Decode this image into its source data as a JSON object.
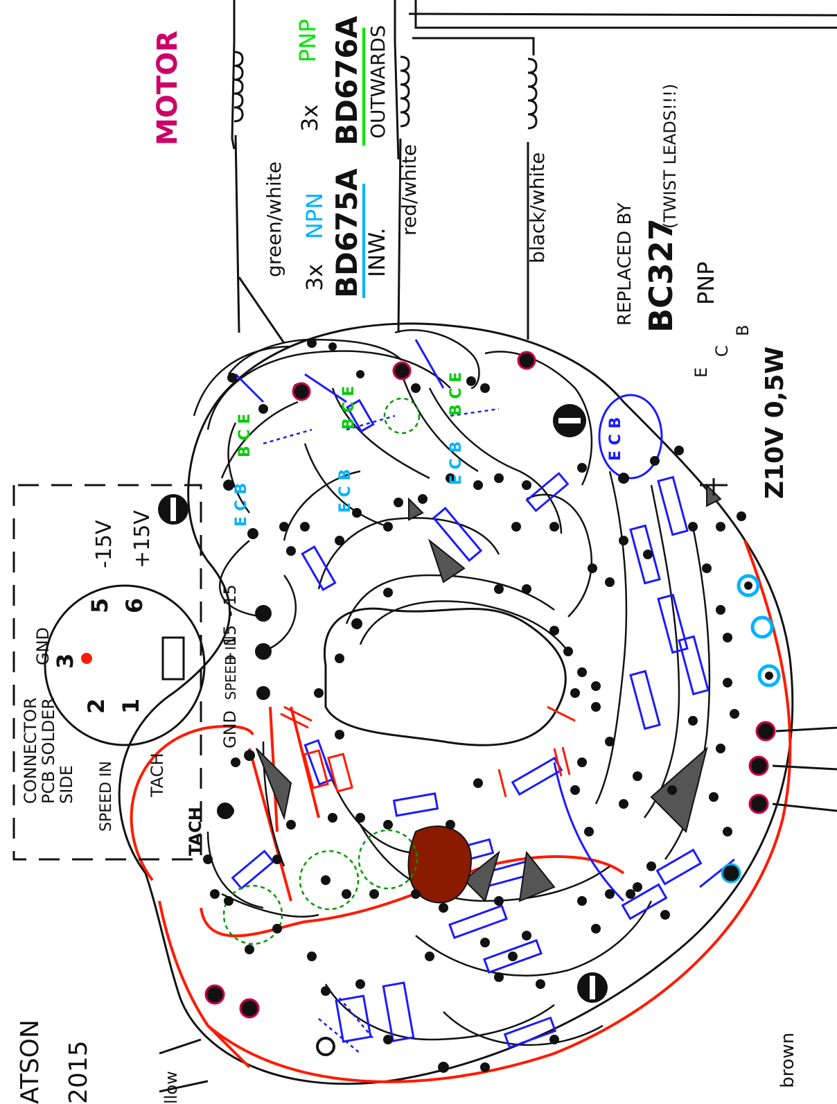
{
  "title": {
    "motor": "MOTOR",
    "author_fragment": "ATSON",
    "year": "2015"
  },
  "transistors": {
    "npn_count": "3x",
    "npn_type": "NPN",
    "npn_part": "BD675A",
    "npn_note": "INW.",
    "pnp_count": "3x",
    "pnp_type": "PNP",
    "pnp_part": "BD676A",
    "pnp_note": "OUTWARDS",
    "replacement_line1": "REPLACED BY",
    "replacement_part": "BC327",
    "replacement_note": "(TWIST LEADS!!!)",
    "replacement_type": "PNP",
    "pins_ecb": [
      "E",
      "C",
      "B"
    ]
  },
  "motor_wires": [
    "green/white",
    "red/white",
    "black/white"
  ],
  "zener": "Z10V 0,5W",
  "connector": {
    "title_line1": "CONNECTOR",
    "title_line2": "PCB SOLDER",
    "title_line3": "SIDE",
    "pin_gnd": "GND",
    "pin_speed_in": "SPEED IN",
    "pin_tach": "TACH",
    "pin_minus15": "-15V",
    "pin_plus15": "+15V",
    "pins": [
      "1",
      "2",
      "3",
      "5",
      "6"
    ]
  },
  "board_labels": {
    "gnd": "GND",
    "speed_in": "SPEED IN",
    "plus15": "+ 15",
    "minus15": "- 15",
    "tach": "TACH",
    "brown": "brown",
    "yellow_fragment": "llow"
  },
  "colors": {
    "black_trace": "#111111",
    "blue_part": "#1a1aff",
    "red_trace": "#ff1a00",
    "green_label": "#00e600",
    "cyan_label": "#00b3ff",
    "magenta": "#ff0080"
  }
}
